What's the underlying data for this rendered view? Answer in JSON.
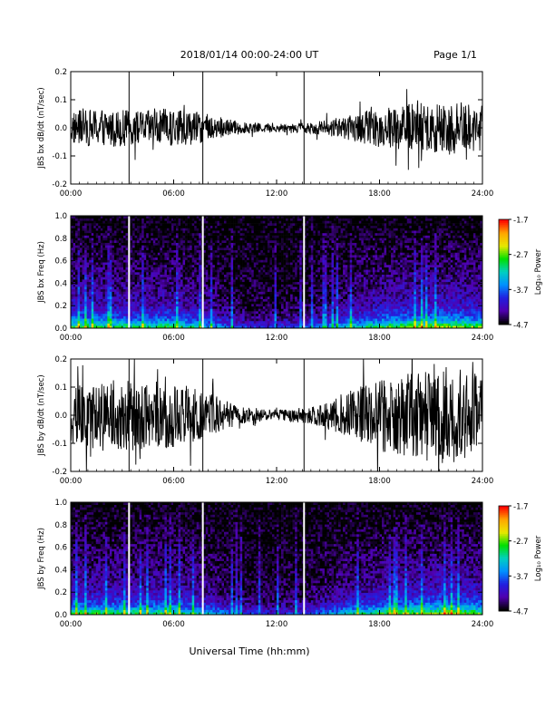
{
  "header": {
    "title": "2018/01/14  00:00-24:00 UT",
    "page": "Page 1/1"
  },
  "footer": {
    "xlabel": "Universal Time (hh:mm)"
  },
  "x_ticks": [
    "00:00",
    "06:00",
    "12:00",
    "18:00",
    "24:00"
  ],
  "colorbar": {
    "label": "Log₁₀ Power",
    "ticks": [
      "-1.7",
      "-2.7",
      "-3.7",
      "-4.7"
    ],
    "colors": [
      "#ff0000",
      "#ffa500",
      "#e8e800",
      "#00e000",
      "#00d0c0",
      "#0090ff",
      "#2020e0",
      "#5000b0",
      "#000000"
    ]
  },
  "chart_data": [
    {
      "type": "line",
      "ylabel": "JBS bx dB/dt (nT/sec)",
      "xlim": [
        0,
        24
      ],
      "ylim": [
        -0.2,
        0.2
      ],
      "y_ticks": [
        "0.2",
        "0.1",
        "0.0",
        "-0.1",
        "-0.2"
      ],
      "series": [
        {
          "values": "dense dB/dt trace, approx ±0.06 nT/s before 09:00, ±0.015 nT/s 10:00-14:00, growing to ±0.12 nT/s after 16:00"
        }
      ],
      "envelope": {
        "x": [
          0,
          2,
          4,
          6,
          8,
          10,
          12,
          14,
          16,
          18,
          20,
          22,
          24
        ],
        "amp": [
          0.06,
          0.07,
          0.06,
          0.07,
          0.05,
          0.02,
          0.015,
          0.02,
          0.04,
          0.07,
          0.09,
          0.1,
          0.08
        ]
      },
      "markers": [
        3.4,
        7.7,
        13.6
      ]
    },
    {
      "type": "heatmap",
      "ylabel": "JBS bx Freq (Hz)",
      "xlim": [
        0,
        24
      ],
      "ylim": [
        0,
        1.0
      ],
      "y_ticks": [
        "1.0",
        "0.8",
        "0.6",
        "0.4",
        "0.2",
        "0.0"
      ],
      "zlim": [
        -4.7,
        -1.7
      ],
      "markers": [
        3.4,
        7.7,
        13.6
      ]
    },
    {
      "type": "line",
      "ylabel": "JBS by dB/dt (nT/sec)",
      "xlim": [
        0,
        24
      ],
      "ylim": [
        -0.2,
        0.2
      ],
      "y_ticks": [
        "0.2",
        "0.1",
        "0.0",
        "-0.1",
        "-0.2"
      ],
      "series": [
        {
          "values": "dense dB/dt trace, approx ±0.12 nT/s 00:00-07:00, quiet ±0.02 nT/s 09:00-14:00, large ±0.15-0.2 nT/s after 16:00"
        }
      ],
      "envelope": {
        "x": [
          0,
          2,
          4,
          6,
          8,
          10,
          12,
          14,
          16,
          18,
          20,
          22,
          24
        ],
        "amp": [
          0.1,
          0.13,
          0.12,
          0.12,
          0.08,
          0.03,
          0.02,
          0.03,
          0.08,
          0.13,
          0.15,
          0.18,
          0.14
        ]
      },
      "markers": [
        3.4,
        7.7,
        13.6
      ]
    },
    {
      "type": "heatmap",
      "ylabel": "JBS by Freq (Hz)",
      "xlim": [
        0,
        24
      ],
      "ylim": [
        0,
        1.0
      ],
      "y_ticks": [
        "1.0",
        "0.8",
        "0.6",
        "0.4",
        "0.2",
        "0.0"
      ],
      "zlim": [
        -4.7,
        -1.7
      ],
      "markers": [
        3.4,
        7.7,
        13.6
      ]
    }
  ]
}
